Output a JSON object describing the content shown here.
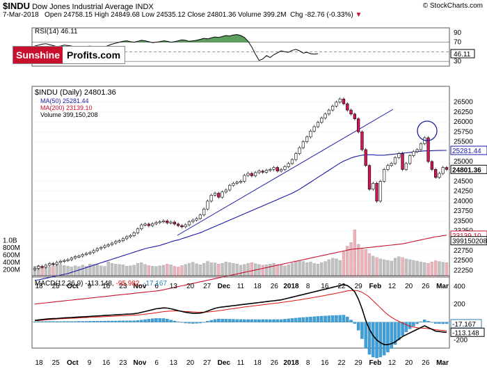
{
  "header": {
    "symbol": "$INDU",
    "name": "Dow Jones Industrial Average",
    "exchange": "INDX",
    "date": "7-Mar-2018",
    "ohlc": "Open 24758.15  High 24849.68  Low 24535.12  Close 24801.36  Volume 399.2M",
    "change": "Chg -82.76 (-0.33%)",
    "change_arrow": "▼",
    "credit": "© StockCharts.com",
    "brand_a": "Sunshine",
    "brand_b": "Profits.com"
  },
  "colors": {
    "up": "#ffffff",
    "down": "#d4145a",
    "ma50": "#1a1aa8",
    "ma200": "#c8102e",
    "vol_up": "#c0c0c0",
    "vol_down": "#f0b0b8",
    "rsi_fill": "#5e9e5e",
    "macd_line": "#000000",
    "macd_signal": "#d11",
    "macd_hist": "#3f9fd6"
  },
  "chart_data": [
    {
      "type": "line",
      "title": "RSI(14) 46.11",
      "label": "RSI(14) 46.11",
      "ylim": [
        20,
        100
      ],
      "y_ticks": [
        90,
        70,
        50,
        30
      ],
      "reference_lines": [
        70,
        50,
        30
      ],
      "last_value_label": "46.11",
      "values": [
        62,
        64,
        66,
        67,
        65,
        63,
        61,
        62,
        64,
        63,
        62,
        60,
        58,
        59,
        61,
        62,
        60,
        58,
        57,
        60,
        63,
        66,
        68,
        70,
        72,
        73,
        71,
        70,
        72,
        74,
        73,
        71,
        69,
        70,
        71,
        73,
        72,
        70,
        71,
        73,
        75,
        74,
        72,
        73,
        74,
        76,
        78,
        77,
        79,
        81,
        80,
        82,
        84,
        83,
        85,
        86,
        84,
        80,
        72,
        60,
        45,
        32,
        35,
        42,
        38,
        44,
        48,
        52,
        50,
        49,
        53,
        55,
        52,
        47,
        49,
        46,
        45,
        46
      ]
    },
    {
      "type": "candlestick",
      "title": "$INDU (Daily) 24801.36",
      "legend": [
        "$INDU (Daily) 24801.36",
        "MA(50) 25281.44",
        "MA(200) 23139.10",
        "Volume 399,150,208"
      ],
      "x_tick_labels": [
        "18",
        "25",
        "Oct",
        "9",
        "16",
        "23",
        "Nov",
        "6",
        "13",
        "20",
        "27",
        "Dec",
        "11",
        "18",
        "26",
        "2018",
        "8",
        "16",
        "22",
        "29",
        "Feb",
        "12",
        "20",
        "26",
        "Mar"
      ],
      "y_ticks": [
        26500,
        26250,
        26000,
        25750,
        25500,
        25250,
        25000,
        24750,
        24500,
        24250,
        24000,
        23750,
        23500,
        23250,
        23000,
        22750,
        22500,
        22250
      ],
      "ylim": [
        22080,
        26900
      ],
      "volume_ticks": [
        "1.0B",
        "800M",
        "600M",
        "400M",
        "200M"
      ],
      "volume_ylim": [
        0,
        1300
      ],
      "last_labels": {
        "ma50": "25281.44",
        "close": "24801.36",
        "ma200": "23139.10",
        "volume": "399150208"
      },
      "close": [
        22300,
        22350,
        22330,
        22380,
        22420,
        22400,
        22450,
        22480,
        22500,
        22520,
        22560,
        22600,
        22610,
        22650,
        22680,
        22700,
        22750,
        22800,
        22830,
        22870,
        22900,
        22940,
        22980,
        23000,
        23050,
        23100,
        23130,
        23200,
        23300,
        23400,
        23420,
        23380,
        23430,
        23460,
        23480,
        23500,
        23450,
        23470,
        23420,
        23380,
        23350,
        23400,
        23480,
        23520,
        23560,
        23650,
        23800,
        24000,
        24150,
        24200,
        24100,
        24230,
        24280,
        24400,
        24450,
        24480,
        24500,
        24650,
        24700,
        24640,
        24720,
        24760,
        24730,
        24780,
        24800,
        24850,
        24760,
        24800,
        24870,
        24950,
        25050,
        25200,
        25350,
        25500,
        25620,
        25770,
        25880,
        25990,
        26100,
        26200,
        26300,
        26400,
        26500,
        26580,
        26460,
        26300,
        26200,
        26080,
        25750,
        25300,
        24900,
        24300,
        24450,
        24000,
        24500,
        24800,
        24900,
        24950,
        25100,
        25200,
        24800,
        24950,
        25150,
        25250,
        25300,
        25450,
        25600,
        25000,
        24800,
        24600,
        24700,
        24850,
        24800
      ],
      "volume": [
        300,
        320,
        290,
        310,
        280,
        300,
        330,
        350,
        320,
        300,
        280,
        310,
        290,
        330,
        300,
        360,
        350,
        340,
        310,
        290,
        420,
        380,
        360,
        350,
        340,
        300,
        310,
        330,
        380,
        400,
        350,
        320,
        300,
        290,
        310,
        330,
        360,
        340,
        300,
        280,
        320,
        350,
        380,
        410,
        370,
        340,
        380,
        430,
        400,
        390,
        360,
        380,
        420,
        400,
        380,
        360,
        330,
        350,
        380,
        400,
        370,
        350,
        330,
        340,
        360,
        380,
        350,
        330,
        310,
        340,
        380,
        420,
        450,
        430,
        400,
        420,
        380,
        360,
        400,
        430,
        480,
        520,
        500,
        460,
        700,
        850,
        950,
        1300,
        900,
        800,
        760,
        650,
        580,
        540,
        500,
        480,
        460,
        440,
        520,
        560,
        540,
        500,
        480,
        460,
        440,
        420,
        400,
        380,
        420,
        450,
        430,
        410,
        399
      ],
      "ma50": [
        22000,
        22010,
        22030,
        22050,
        22070,
        22090,
        22110,
        22130,
        22150,
        22170,
        22200,
        22230,
        22260,
        22290,
        22320,
        22350,
        22380,
        22410,
        22440,
        22470,
        22500,
        22530,
        22560,
        22590,
        22620,
        22650,
        22680,
        22710,
        22740,
        22770,
        22800,
        22820,
        22840,
        22860,
        22880,
        22910,
        22940,
        22970,
        23000,
        23020,
        23050,
        23080,
        23110,
        23140,
        23170,
        23200,
        23240,
        23280,
        23320,
        23360,
        23400,
        23440,
        23480,
        23520,
        23560,
        23600,
        23640,
        23680,
        23720,
        23760,
        23800,
        23840,
        23880,
        23920,
        23960,
        24000,
        24040,
        24080,
        24120,
        24160,
        24200,
        24250,
        24300,
        24360,
        24420,
        24480,
        24540,
        24600,
        24660,
        24720,
        24780,
        24840,
        24900,
        24960,
        25010,
        25050,
        25090,
        25120,
        25140,
        25160,
        25170,
        25170,
        25170,
        25160,
        25160,
        25160,
        25170,
        25180,
        25190,
        25200,
        25210,
        25220,
        25230,
        25240,
        25250,
        25260,
        25270,
        25270,
        25275,
        25278,
        25280,
        25281,
        25281
      ],
      "ma200": [
        21400,
        21410,
        21420,
        21430,
        21440,
        21450,
        21460,
        21470,
        21480,
        21490,
        21500,
        21510,
        21520,
        21530,
        21540,
        21550,
        21560,
        21570,
        21580,
        21590,
        21600,
        21610,
        21620,
        21630,
        21640,
        21650,
        21660,
        21670,
        21680,
        21690,
        21700,
        21710,
        21720,
        21730,
        21740,
        21760,
        21780,
        21800,
        21820,
        21840,
        21860,
        21880,
        21900,
        21920,
        21940,
        21960,
        21980,
        22000,
        22020,
        22040,
        22060,
        22080,
        22100,
        22120,
        22140,
        22160,
        22180,
        22200,
        22220,
        22240,
        22260,
        22280,
        22300,
        22320,
        22340,
        22360,
        22380,
        22400,
        22420,
        22440,
        22460,
        22480,
        22500,
        22520,
        22540,
        22560,
        22580,
        22600,
        22620,
        22640,
        22660,
        22680,
        22700,
        22720,
        22740,
        22760,
        22780,
        22790,
        22800,
        22810,
        22820,
        22830,
        22840,
        22850,
        22860,
        22870,
        22880,
        22890,
        22900,
        22910,
        22920,
        22940,
        22960,
        22980,
        23000,
        23020,
        23040,
        23060,
        23080,
        23100,
        23110,
        23125,
        23139
      ]
    },
    {
      "type": "line",
      "title": "MACD(12,26,9) -113.148, -95.982, -17.167",
      "label": "MACD(12,26,9)",
      "values_label": "-113.148",
      "signal_label": "-95.982",
      "hist_label": "-17.167",
      "y_ticks": [
        400,
        200,
        0,
        -200
      ],
      "ylim": [
        -290,
        520
      ],
      "macd": [
        20,
        25,
        30,
        35,
        38,
        40,
        42,
        45,
        48,
        50,
        52,
        55,
        58,
        60,
        62,
        65,
        68,
        70,
        72,
        75,
        78,
        80,
        82,
        85,
        88,
        90,
        92,
        95,
        100,
        110,
        120,
        130,
        140,
        150,
        155,
        160,
        158,
        150,
        140,
        130,
        120,
        110,
        105,
        100,
        100,
        102,
        110,
        125,
        140,
        155,
        165,
        170,
        175,
        180,
        185,
        190,
        195,
        200,
        205,
        210,
        215,
        220,
        225,
        230,
        235,
        240,
        245,
        250,
        260,
        270,
        280,
        290,
        300,
        310,
        320,
        330,
        340,
        350,
        360,
        370,
        380,
        390,
        400,
        410,
        420,
        410,
        380,
        340,
        260,
        150,
        20,
        -80,
        -150,
        -200,
        -230,
        -250,
        -250,
        -240,
        -220,
        -190,
        -160,
        -140,
        -120,
        -100,
        -80,
        -60,
        -40,
        -60,
        -80,
        -100,
        -105,
        -110,
        -113
      ],
      "signal": [
        15,
        18,
        22,
        26,
        29,
        32,
        35,
        38,
        40,
        42,
        44,
        46,
        48,
        50,
        52,
        54,
        56,
        58,
        60,
        62,
        64,
        66,
        68,
        70,
        72,
        74,
        76,
        78,
        80,
        85,
        90,
        95,
        100,
        106,
        112,
        118,
        122,
        125,
        126,
        125,
        123,
        120,
        118,
        115,
        113,
        112,
        112,
        114,
        118,
        123,
        128,
        134,
        140,
        146,
        152,
        158,
        164,
        170,
        175,
        180,
        185,
        190,
        195,
        200,
        205,
        210,
        215,
        220,
        226,
        232,
        238,
        244,
        250,
        257,
        264,
        271,
        278,
        285,
        292,
        300,
        308,
        316,
        324,
        332,
        340,
        350,
        355,
        355,
        350,
        335,
        310,
        280,
        240,
        200,
        160,
        120,
        85,
        55,
        30,
        10,
        -10,
        -30,
        -45,
        -55,
        -62,
        -66,
        -68,
        -72,
        -77,
        -84,
        -88,
        -92,
        -96
      ],
      "hist": [
        5,
        7,
        8,
        9,
        9,
        8,
        7,
        7,
        8,
        8,
        8,
        9,
        10,
        10,
        10,
        11,
        12,
        12,
        12,
        13,
        14,
        14,
        14,
        15,
        16,
        16,
        16,
        17,
        20,
        25,
        30,
        35,
        40,
        44,
        43,
        42,
        36,
        25,
        14,
        5,
        -3,
        -10,
        -13,
        -15,
        -13,
        -10,
        -2,
        11,
        22,
        32,
        37,
        36,
        35,
        34,
        33,
        32,
        31,
        30,
        30,
        30,
        30,
        30,
        30,
        30,
        30,
        30,
        30,
        30,
        34,
        38,
        42,
        46,
        50,
        53,
        56,
        59,
        62,
        65,
        68,
        70,
        72,
        74,
        76,
        78,
        80,
        60,
        25,
        -15,
        -90,
        -185,
        -290,
        -360,
        -390,
        -400,
        -390,
        -370,
        -335,
        -295,
        -250,
        -200,
        -150,
        -110,
        -75,
        -45,
        -18,
        6,
        28,
        12,
        -3,
        -16,
        -17,
        -18,
        -17
      ],
      "x_tick_labels": [
        "18",
        "25",
        "Oct",
        "9",
        "16",
        "23",
        "Nov",
        "6",
        "13",
        "20",
        "27",
        "Dec",
        "11",
        "18",
        "26",
        "2018",
        "8",
        "16",
        "22",
        "29",
        "Feb",
        "12",
        "20",
        "26",
        "Mar"
      ]
    }
  ]
}
